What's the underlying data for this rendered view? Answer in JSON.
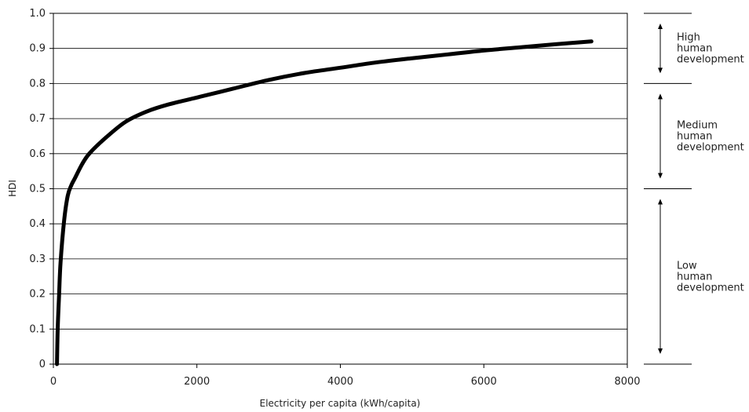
{
  "chart_data": {
    "type": "line",
    "xlabel": "Electricity per capita (kWh/capita)",
    "ylabel": "HDI",
    "xlim": [
      0,
      8000
    ],
    "ylim": [
      0,
      1.0
    ],
    "x_ticks": [
      "0",
      "2000",
      "4000",
      "6000",
      "8000"
    ],
    "y_ticks": [
      "0",
      "0.1",
      "0.2",
      "0.3",
      "0.4",
      "0.5",
      "0.6",
      "0.7",
      "0.8",
      "0.9",
      "1.0"
    ],
    "grid": "horizontal",
    "series": [
      {
        "x": [
          50,
          60,
          80,
          100,
          150,
          200,
          250,
          300,
          400,
          500,
          700,
          1000,
          1300,
          1600,
          2000,
          2500,
          3000,
          3500,
          4000,
          4500,
          5000,
          5500,
          6000,
          6500,
          7000,
          7500
        ],
        "y": [
          0.0,
          0.1,
          0.2,
          0.29,
          0.41,
          0.48,
          0.51,
          0.53,
          0.57,
          0.6,
          0.64,
          0.69,
          0.72,
          0.74,
          0.76,
          0.785,
          0.81,
          0.83,
          0.845,
          0.86,
          0.872,
          0.883,
          0.894,
          0.903,
          0.912,
          0.92
        ]
      }
    ],
    "bands": [
      {
        "label": "High\nhuman\ndevelopment",
        "from": 0.8,
        "to": 1.0
      },
      {
        "label": "Medium\nhuman\ndevelopment",
        "from": 0.5,
        "to": 0.8
      },
      {
        "label": "Low\nhuman\ndevelopment",
        "from": 0.0,
        "to": 0.5
      }
    ]
  }
}
